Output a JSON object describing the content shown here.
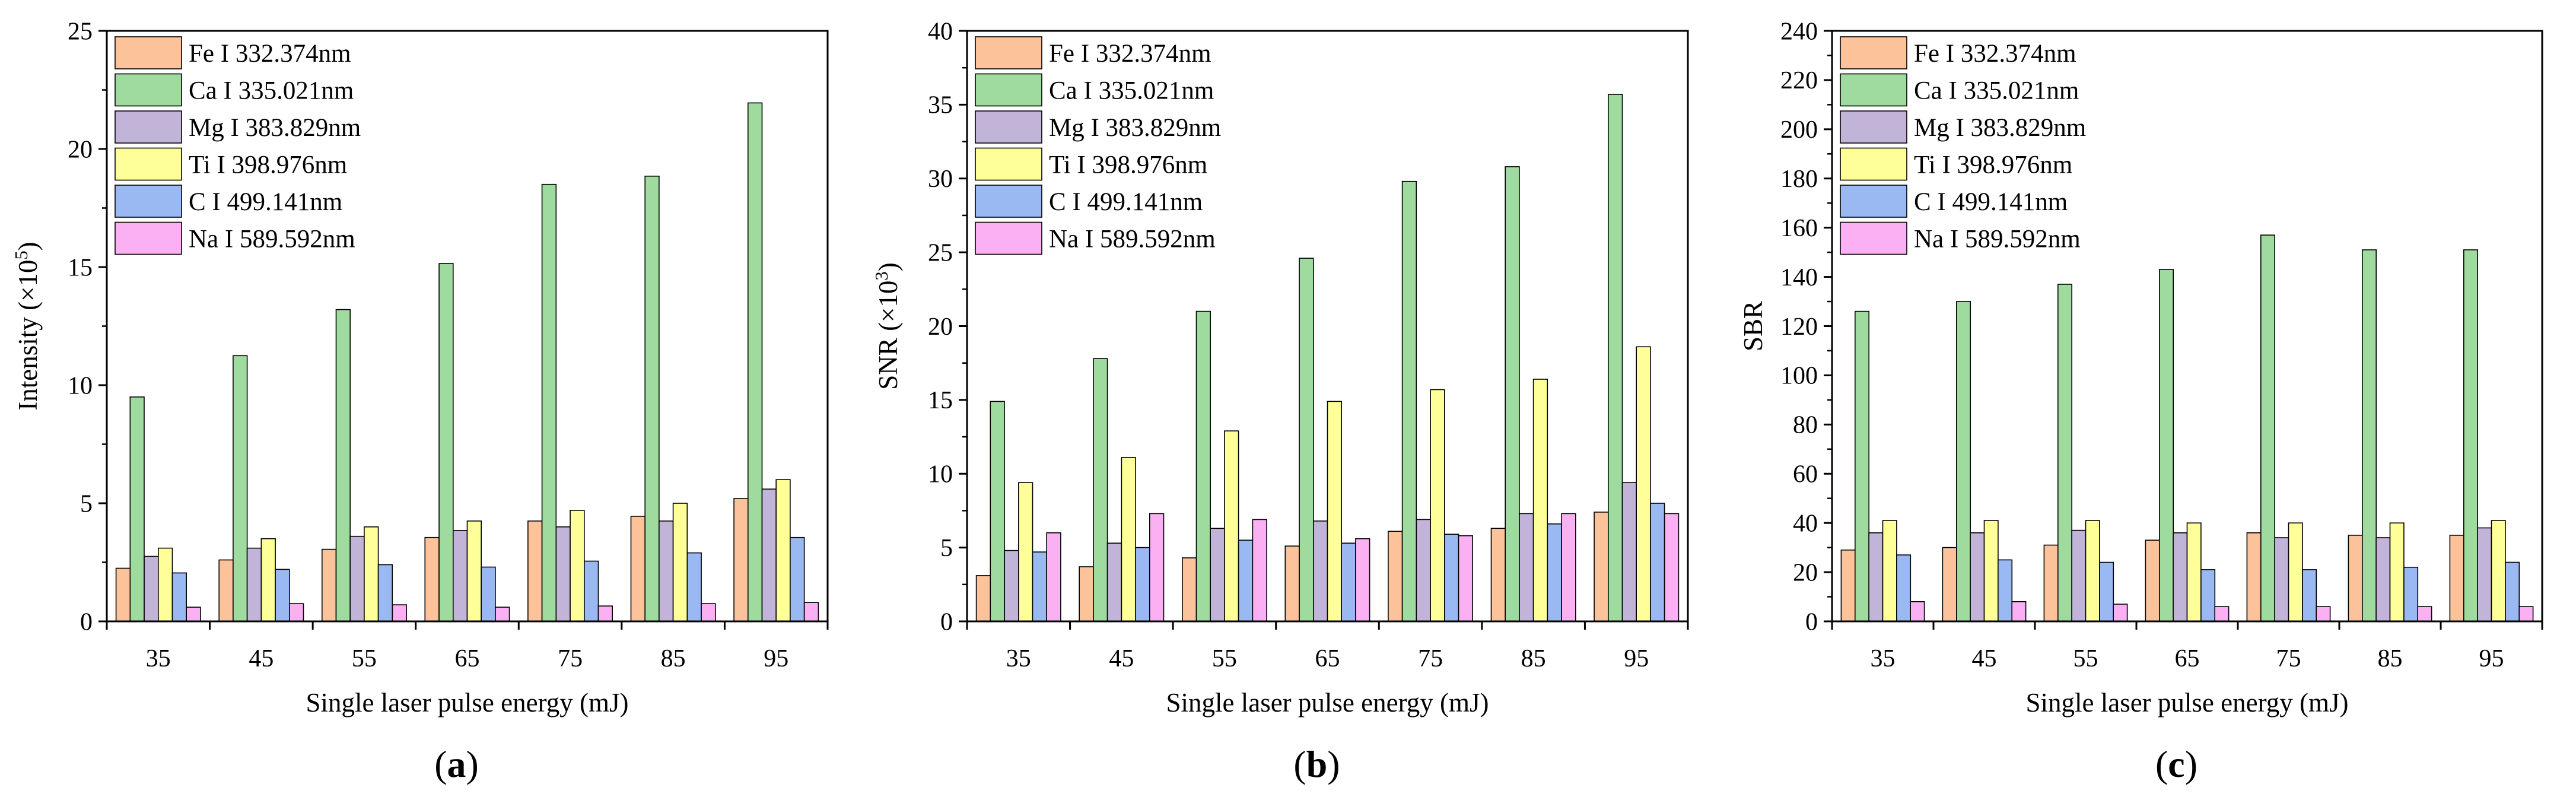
{
  "figure": {
    "background": "#ffffff"
  },
  "colors": {
    "Fe": "#fcc39b",
    "Ca": "#9fdb9f",
    "Mg": "#c2b4d9",
    "Ti": "#ffff99",
    "C": "#9ab9f2",
    "Na": "#fbb0f3",
    "stroke": "#000000"
  },
  "chart_data": [
    {
      "type": "bar",
      "panel_label": "(a)",
      "ylabel_text": "Intensity (×10",
      "ylabel_exp": "5",
      "ylabel_close": ")",
      "xlabel": "Single laser pulse energy (mJ)",
      "categories": [
        "35",
        "45",
        "55",
        "65",
        "75",
        "85",
        "95"
      ],
      "ylim": [
        0,
        25
      ],
      "yticks": [
        0,
        5,
        10,
        15,
        20,
        25
      ],
      "legend_position": "top-left",
      "series": [
        {
          "key": "Fe",
          "name": "Fe I 332.374nm",
          "values": [
            2.25,
            2.6,
            3.05,
            3.55,
            4.25,
            4.45,
            5.2
          ]
        },
        {
          "key": "Ca",
          "name": "Ca I 335.021nm",
          "values": [
            9.5,
            11.25,
            13.2,
            15.15,
            18.5,
            18.85,
            21.95
          ]
        },
        {
          "key": "Mg",
          "name": "Mg I 383.829nm",
          "values": [
            2.75,
            3.1,
            3.6,
            3.85,
            4.0,
            4.25,
            5.6
          ]
        },
        {
          "key": "Ti",
          "name": "Ti I 398.976nm",
          "values": [
            3.1,
            3.5,
            4.0,
            4.25,
            4.7,
            5.0,
            6.0
          ]
        },
        {
          "key": "C",
          "name": "C I  499.141nm",
          "values": [
            2.05,
            2.2,
            2.4,
            2.3,
            2.55,
            2.9,
            3.55
          ]
        },
        {
          "key": "Na",
          "name": "Na I 589.592nm",
          "values": [
            0.6,
            0.75,
            0.7,
            0.6,
            0.65,
            0.75,
            0.8
          ]
        }
      ]
    },
    {
      "type": "bar",
      "panel_label": "(b)",
      "ylabel_text": "SNR (×10",
      "ylabel_exp": "3",
      "ylabel_close": ")",
      "xlabel": "Single laser pulse energy (mJ)",
      "categories": [
        "35",
        "45",
        "55",
        "65",
        "75",
        "85",
        "95"
      ],
      "ylim": [
        0,
        40
      ],
      "yticks": [
        0,
        5,
        10,
        15,
        20,
        25,
        30,
        35,
        40
      ],
      "legend_position": "top-left",
      "series": [
        {
          "key": "Fe",
          "name": "Fe I 332.374nm",
          "values": [
            3.1,
            3.7,
            4.3,
            5.1,
            6.1,
            6.3,
            7.4
          ]
        },
        {
          "key": "Ca",
          "name": "Ca I 335.021nm",
          "values": [
            14.9,
            17.8,
            21.0,
            24.6,
            29.8,
            30.8,
            35.7
          ]
        },
        {
          "key": "Mg",
          "name": "Mg I 383.829nm",
          "values": [
            4.8,
            5.3,
            6.3,
            6.8,
            6.9,
            7.3,
            9.4
          ]
        },
        {
          "key": "Ti",
          "name": "Ti I 398.976nm",
          "values": [
            9.4,
            11.1,
            12.9,
            14.9,
            15.7,
            16.4,
            18.6
          ]
        },
        {
          "key": "C",
          "name": "C I  499.141nm",
          "values": [
            4.7,
            5.0,
            5.5,
            5.3,
            5.9,
            6.6,
            8.0
          ]
        },
        {
          "key": "Na",
          "name": "Na I 589.592nm",
          "values": [
            6.0,
            7.3,
            6.9,
            5.6,
            5.8,
            7.3,
            7.3
          ]
        }
      ]
    },
    {
      "type": "bar",
      "panel_label": "(c)",
      "ylabel_text": "SBR",
      "ylabel_exp": "",
      "ylabel_close": "",
      "xlabel": "Single laser pulse energy (mJ)",
      "categories": [
        "35",
        "45",
        "55",
        "65",
        "75",
        "85",
        "95"
      ],
      "ylim": [
        0,
        240
      ],
      "yticks": [
        0,
        20,
        40,
        60,
        80,
        100,
        120,
        140,
        160,
        180,
        200,
        220,
        240
      ],
      "legend_position": "top-left",
      "series": [
        {
          "key": "Fe",
          "name": "Fe I 332.374nm",
          "values": [
            29,
            30,
            31,
            33,
            36,
            35,
            35
          ]
        },
        {
          "key": "Ca",
          "name": "Ca I 335.021nm",
          "values": [
            126,
            130,
            137,
            143,
            157,
            151,
            151
          ]
        },
        {
          "key": "Mg",
          "name": "Mg I 383.829nm",
          "values": [
            36,
            36,
            37,
            36,
            34,
            34,
            38
          ]
        },
        {
          "key": "Ti",
          "name": "Ti I 398.976nm",
          "values": [
            41,
            41,
            41,
            40,
            40,
            40,
            41
          ]
        },
        {
          "key": "C",
          "name": "C I  499.141nm",
          "values": [
            27,
            25,
            24,
            21,
            21,
            22,
            24
          ]
        },
        {
          "key": "Na",
          "name": "Na I 589.592nm",
          "values": [
            8,
            8,
            7,
            6,
            6,
            6,
            6
          ]
        }
      ]
    }
  ]
}
